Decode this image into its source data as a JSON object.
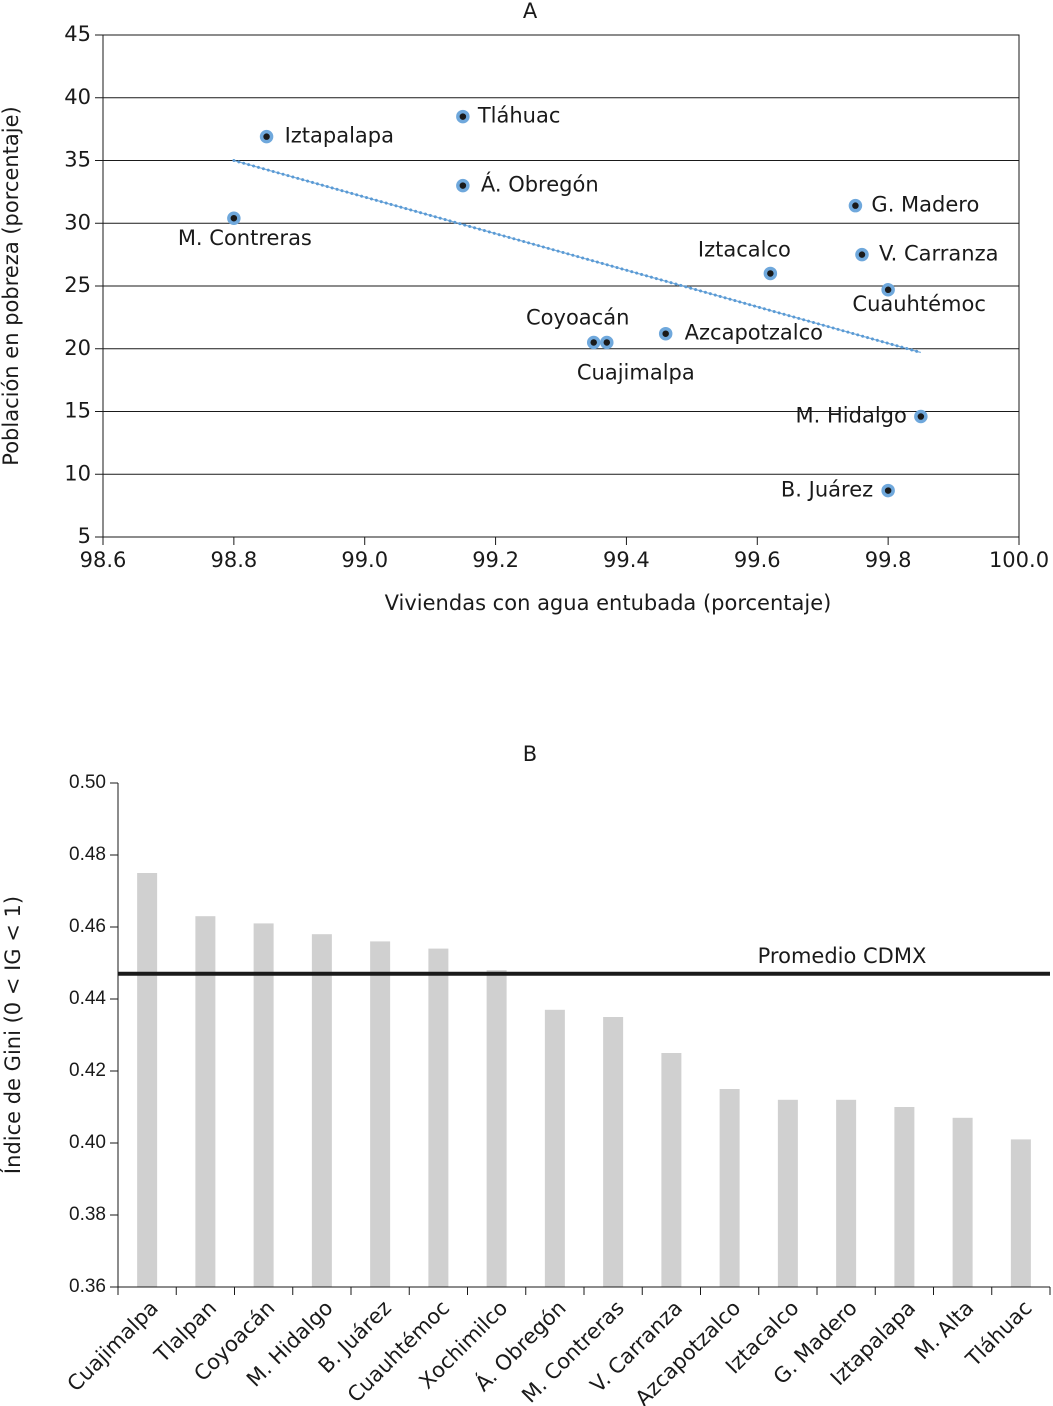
{
  "chart_data": [
    {
      "type": "scatter",
      "title": "A",
      "x_label": "Viviendas con agua entubada (porcentaje)",
      "y_label": "Población en pobreza  (porcentaje)",
      "labels": [
        "Iztapalapa",
        "Tláhuac",
        "Á. Obregón",
        "M. Contreras",
        "G. Madero",
        "V. Carranza",
        "Iztacalco",
        "Cuauhtémoc",
        "Coyoacán",
        "Cuajimalpa",
        "Azcapotzalco",
        "M. Hidalgo",
        "B. Juárez"
      ],
      "x": [
        98.85,
        99.15,
        99.15,
        98.8,
        99.75,
        99.76,
        99.62,
        99.8,
        99.35,
        99.37,
        99.46,
        99.85,
        99.8
      ],
      "values": [
        36.9,
        38.5,
        33.0,
        30.4,
        31.4,
        27.5,
        26.0,
        24.7,
        20.5,
        20.5,
        21.2,
        14.6,
        8.7
      ],
      "color": "#1a1a1a",
      "edge_color": "#6fa8dc",
      "trendline": {
        "x": [
          98.8,
          99.85
        ],
        "y": [
          35.0,
          19.7
        ],
        "color": "#5b9bd5"
      },
      "xlim": [
        98.6,
        100.0
      ],
      "xticks": [
        98.6,
        98.8,
        {
          "value": 99,
          "label": "99.0"
        },
        99.2,
        99.4,
        99.6,
        99.8,
        {
          "value": 100,
          "label": "100.0"
        }
      ],
      "ylim": [
        5,
        45
      ],
      "yticks": [
        5,
        10,
        15,
        20,
        25,
        30,
        35,
        40,
        45
      ],
      "grid": true
    },
    {
      "type": "bar",
      "title": "B",
      "y_label": "Índice de Gini (0 < IG < 1)",
      "categories": [
        "Cuajimalpa",
        "Tlalpan",
        "Coyoacán",
        "M. Hidalgo",
        "B. Juárez",
        "Cuauhtémoc",
        "Xochimilco",
        "Á. Obregón",
        "M. Contreras",
        "V. Carranza",
        "Azcapotzalco",
        "Iztacalco",
        "G. Madero",
        "Iztapalapa",
        "M. Alta",
        "Tláhuac"
      ],
      "values": [
        0.475,
        0.463,
        0.461,
        0.458,
        0.456,
        0.454,
        0.448,
        0.437,
        0.435,
        0.425,
        0.415,
        0.412,
        0.412,
        0.41,
        0.407,
        0.401
      ],
      "color": "#d0d0d0",
      "reference_line": {
        "label": "Promedio CDMX",
        "value": 0.447,
        "color": "#1a1a1a"
      },
      "ylim": [
        0.36,
        0.5
      ],
      "yticks": [
        0.36,
        0.38,
        {
          "value": 0.4,
          "label": "0.40"
        },
        0.42,
        0.44,
        0.46,
        0.48,
        {
          "value": 0.5,
          "label": "0.50"
        }
      ],
      "grid": false
    }
  ]
}
